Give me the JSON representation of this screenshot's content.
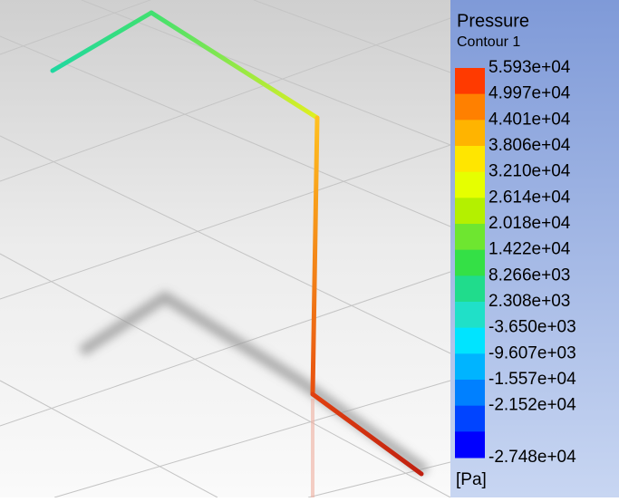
{
  "legend": {
    "title": "Pressure",
    "subtitle": "Contour 1",
    "labels": [
      "5.593e+04",
      "4.997e+04",
      "4.401e+04",
      "3.806e+04",
      "3.210e+04",
      "2.614e+04",
      "2.018e+04",
      "1.422e+04",
      "8.266e+03",
      "2.308e+03",
      "-3.650e+03",
      "-9.607e+03",
      "-1.557e+04",
      "-2.152e+04",
      "-2.748e+04"
    ],
    "unit": "[Pa]"
  }
}
